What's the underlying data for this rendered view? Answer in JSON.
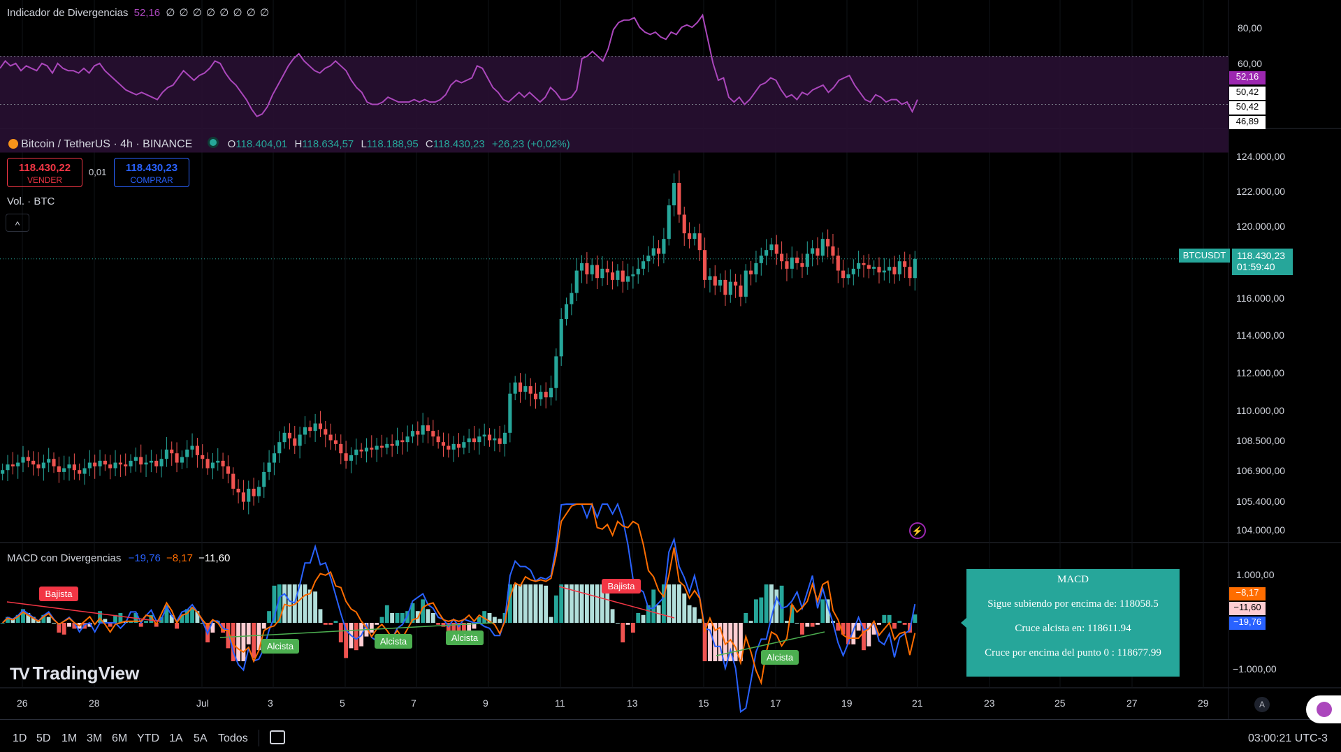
{
  "rsi": {
    "title": "Indicador de Divergencias",
    "value": "52,16",
    "zeros": "∅ ∅ ∅ ∅ ∅ ∅ ∅ ∅",
    "axis": [
      "80,00",
      "60,00"
    ],
    "tags": [
      {
        "text": "52,16",
        "bg": "#9c27b0",
        "color": "#ffffff"
      },
      {
        "text": "50,42",
        "bg": "#ffffff",
        "color": "#000000"
      },
      {
        "text": "50,42",
        "bg": "#ffffff",
        "color": "#000000"
      },
      {
        "text": "46,89",
        "bg": "#ffffff",
        "color": "#000000"
      }
    ],
    "series": [
      65,
      68,
      66,
      67,
      64,
      66,
      65,
      64,
      67,
      66,
      63,
      67,
      65,
      64,
      64,
      63,
      65,
      63,
      66,
      67,
      64,
      62,
      60,
      58,
      56,
      55,
      54,
      55,
      54,
      53,
      52,
      55,
      57,
      58,
      61,
      64,
      62,
      60,
      62,
      63,
      65,
      68,
      67,
      63,
      60,
      58,
      55,
      52,
      48,
      45,
      46,
      49,
      54,
      58,
      62,
      66,
      69,
      71,
      68,
      66,
      64,
      63,
      65,
      66,
      68,
      66,
      64,
      60,
      57,
      55,
      51,
      50,
      50,
      51,
      53,
      52,
      51,
      51,
      51,
      52,
      51,
      52,
      51,
      51,
      52,
      54,
      58,
      60,
      59,
      60,
      61,
      66,
      65,
      61,
      57,
      55,
      52,
      51,
      53,
      55,
      53,
      55,
      53,
      51,
      53,
      57,
      55,
      52,
      52,
      53,
      56,
      69,
      70,
      72,
      70,
      68,
      73,
      81,
      84,
      85,
      85,
      86,
      82,
      80,
      79,
      80,
      78,
      77,
      80,
      79,
      82,
      83,
      82,
      84,
      87,
      77,
      67,
      60,
      61,
      53,
      51,
      53,
      50,
      52,
      55,
      58,
      59,
      61,
      60,
      56,
      53,
      54,
      52,
      55,
      54,
      56,
      57,
      58,
      55,
      57,
      60,
      61,
      62,
      58,
      55,
      52,
      51,
      54,
      53,
      51,
      52,
      52,
      50,
      51,
      47,
      52
    ],
    "line_color": "#ab47bc",
    "band_color": "#2a1035"
  },
  "symbol": {
    "name": "Bitcoin / TetherUS · 4h · BINANCE",
    "o_label": "O",
    "o_value": "118.404,01",
    "h_label": "H",
    "h_value": "118.634,57",
    "l_label": "L",
    "l_value": "118.188,95",
    "c_label": "C",
    "c_value": "118.430,23",
    "change": "+26,23 (+0,02%)"
  },
  "trade": {
    "sell_price": "118.430,22",
    "sell_label": "VENDER",
    "spread": "0,01",
    "buy_price": "118.430,23",
    "buy_label": "COMPRAR"
  },
  "volume": {
    "label": "Vol. · BTC",
    "collapse": "^"
  },
  "price_axis": [
    "124.000,00",
    "122.000,00",
    "120.000,00",
    "116.000,00",
    "114.000,00",
    "112.000,00",
    "110.000,00",
    "108.500,00",
    "106.900,00",
    "105.400,00",
    "104.000,00"
  ],
  "price_tag": {
    "symbol": "BTCUSDT",
    "price": "118.430,23",
    "countdown": "01:59:40"
  },
  "candles_close": [
    107.1,
    107.4,
    107.3,
    107.5,
    107.8,
    107.6,
    107.4,
    107.2,
    107.5,
    107.7,
    107.3,
    107.0,
    107.2,
    107.4,
    107.1,
    106.9,
    107.2,
    107.5,
    107.3,
    107.6,
    107.4,
    107.2,
    107.5,
    107.4,
    107.3,
    107.6,
    107.8,
    107.4,
    107.5,
    107.6,
    107.3,
    107.7,
    108.2,
    108.0,
    107.5,
    107.8,
    108.2,
    108.4,
    107.9,
    107.7,
    107.2,
    107.5,
    107.6,
    107.3,
    106.9,
    106.1,
    105.9,
    105.4,
    106.1,
    105.7,
    106.2,
    107.0,
    107.5,
    108.0,
    108.6,
    109.1,
    108.8,
    108.4,
    109.0,
    109.4,
    109.2,
    109.6,
    109.3,
    109.0,
    108.7,
    108.5,
    108.0,
    107.6,
    107.9,
    108.2,
    108.1,
    108.3,
    108.2,
    108.4,
    108.3,
    108.5,
    108.4,
    108.7,
    108.6,
    108.9,
    109.2,
    109.0,
    109.5,
    109.2,
    108.9,
    108.6,
    108.4,
    108.2,
    108.5,
    108.3,
    108.6,
    108.8,
    108.6,
    108.9,
    109.0,
    108.7,
    108.8,
    108.5,
    109.1,
    111.2,
    111.8,
    111.3,
    111.6,
    111.2,
    110.9,
    111.3,
    111.0,
    111.5,
    113.2,
    115.2,
    116.0,
    116.6,
    117.8,
    118.2,
    117.6,
    118.1,
    117.4,
    117.9,
    117.7,
    117.3,
    117.8,
    117.2,
    117.5,
    117.6,
    117.9,
    118.3,
    118.6,
    119.0,
    118.7,
    119.5,
    121.3,
    122.5,
    120.8,
    119.8,
    119.5,
    119.8,
    118.9,
    117.3,
    117.5,
    117.0,
    117.3,
    116.5,
    117.2,
    117.0,
    116.4,
    117.8,
    117.6,
    118.2,
    118.6,
    118.9,
    119.2,
    118.7,
    118.3,
    117.9,
    118.5,
    118.2,
    118.0,
    118.7,
    119.0,
    118.6,
    119.5,
    119.1,
    118.6,
    117.8,
    117.4,
    117.6,
    117.9,
    118.2,
    118.1,
    117.9,
    118.0,
    117.7,
    117.8,
    118.0,
    117.6,
    118.3,
    118.0,
    117.4,
    118.43
  ],
  "macd": {
    "title": "MACD con Divergencias",
    "v1": "−19,76",
    "v2": "−8,17",
    "v3": "−11,60",
    "axis": [
      "1.000,00",
      "−1.000,00"
    ],
    "tags": [
      {
        "text": "−8,17",
        "bg": "#ff6d00",
        "color": "#ffffff"
      },
      {
        "text": "−11,60",
        "bg": "#ffcdd2",
        "color": "#000000"
      },
      {
        "text": "−19,76",
        "bg": "#2962ff",
        "color": "#ffffff"
      }
    ],
    "labels": [
      {
        "text": "Bajista",
        "color": "#f23645"
      },
      {
        "text": "Bajista",
        "color": "#f23645"
      },
      {
        "text": "Alcista",
        "color": "#4caf50"
      },
      {
        "text": "Alcista",
        "color": "#4caf50"
      },
      {
        "text": "Alcista",
        "color": "#4caf50"
      },
      {
        "text": "Alcista",
        "color": "#4caf50"
      }
    ],
    "tooltip": {
      "title": "MACD",
      "line1": "Sigue subiendo por encima de: 118058.5",
      "line2": "Cruce alcista en: 118611.94",
      "line3": "Cruce por encima del punto 0 : 118677.99"
    }
  },
  "brand": "TradingView",
  "time_axis": [
    "26",
    "28",
    "Jul",
    "3",
    "5",
    "7",
    "9",
    "11",
    "13",
    "15",
    "17",
    "19",
    "21",
    "23",
    "25",
    "27",
    "29"
  ],
  "timeframes": [
    "1D",
    "5D",
    "1M",
    "3M",
    "6M",
    "YTD",
    "1A",
    "5A",
    "Todos"
  ],
  "clock": "03:00:21 UTC-3",
  "axis_mode": "A",
  "colors": {
    "up": "#26a69a",
    "down": "#ef5350",
    "macd": "#2962ff",
    "signal": "#ff6d00"
  }
}
